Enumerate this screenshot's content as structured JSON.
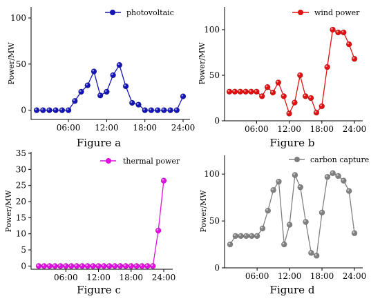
{
  "charts": [
    {
      "caption": "Figure a",
      "ylabel": "Power/MW",
      "color": "#1414b4",
      "legend": "photovoltaic",
      "ylim": [
        -10,
        112
      ],
      "yticks": [
        0,
        50,
        100
      ],
      "xticks": [
        "06:00",
        "12:00",
        "18:00",
        "24:00"
      ]
    },
    {
      "caption": "Figure b",
      "ylabel": "Power/MW",
      "color": "#e01010",
      "legend": "wind power",
      "ylim": [
        0,
        125
      ],
      "yticks": [
        0,
        50,
        100
      ],
      "xticks": [
        "06:00",
        "12:00",
        "18:00",
        "24:00"
      ]
    },
    {
      "caption": "Figure c",
      "ylabel": "Power/MW",
      "color": "#e010e0",
      "legend": "thermal power",
      "ylim": [
        -1,
        35
      ],
      "yticks": [
        0,
        5,
        10,
        15,
        20,
        25,
        30,
        35
      ],
      "xticks": [
        "06:00",
        "12:00",
        "18:00",
        "24:00"
      ]
    },
    {
      "caption": "Figure d",
      "ylabel": "Power/MW",
      "color": "#808080",
      "legend": "carbon capture",
      "ylim": [
        0,
        120
      ],
      "yticks": [
        0,
        50,
        100
      ],
      "xticks": [
        "06:00",
        "12:00",
        "18:00",
        "24:00"
      ]
    }
  ],
  "chart_data": [
    {
      "type": "line",
      "x": [
        1,
        2,
        3,
        4,
        5,
        6,
        7,
        8,
        9,
        10,
        11,
        12,
        13,
        14,
        15,
        16,
        17,
        18,
        19,
        20,
        21,
        22,
        23,
        24
      ],
      "series": [
        {
          "name": "photovoltaic",
          "values": [
            0,
            0,
            0,
            0,
            0,
            0,
            10,
            20,
            27,
            42,
            16,
            20,
            38,
            49,
            26,
            8,
            6,
            0,
            0,
            0,
            0,
            0,
            0,
            15
          ]
        }
      ]
    },
    {
      "type": "line",
      "x": [
        1,
        2,
        3,
        4,
        5,
        6,
        7,
        8,
        9,
        10,
        11,
        12,
        13,
        14,
        15,
        16,
        17,
        18,
        19,
        20,
        21,
        22,
        23,
        24
      ],
      "series": [
        {
          "name": "wind power",
          "values": [
            32,
            32,
            32,
            32,
            32,
            32,
            27,
            37,
            31,
            42,
            27,
            8,
            20,
            50,
            27,
            25,
            9,
            16,
            59,
            100,
            97,
            97,
            84,
            68
          ]
        }
      ]
    },
    {
      "type": "line",
      "x": [
        1,
        2,
        3,
        4,
        5,
        6,
        7,
        8,
        9,
        10,
        11,
        12,
        13,
        14,
        15,
        16,
        17,
        18,
        19,
        20,
        21,
        22,
        23,
        24
      ],
      "series": [
        {
          "name": "thermal power",
          "values": [
            0,
            0,
            0,
            0,
            0,
            0,
            0,
            0,
            0,
            0,
            0,
            0,
            0,
            0,
            0,
            0,
            0,
            0,
            0,
            0,
            0,
            0,
            11,
            26.5
          ]
        }
      ]
    },
    {
      "type": "line",
      "x": [
        1,
        2,
        3,
        4,
        5,
        6,
        7,
        8,
        9,
        10,
        11,
        12,
        13,
        14,
        15,
        16,
        17,
        18,
        19,
        20,
        21,
        22,
        23,
        24
      ],
      "series": [
        {
          "name": "carbon capture",
          "values": [
            25,
            34,
            34,
            34,
            34,
            34,
            42,
            61,
            83,
            92,
            25,
            46,
            99,
            86,
            49,
            16,
            13,
            59,
            97,
            101,
            98,
            93,
            82,
            37
          ]
        }
      ]
    }
  ]
}
